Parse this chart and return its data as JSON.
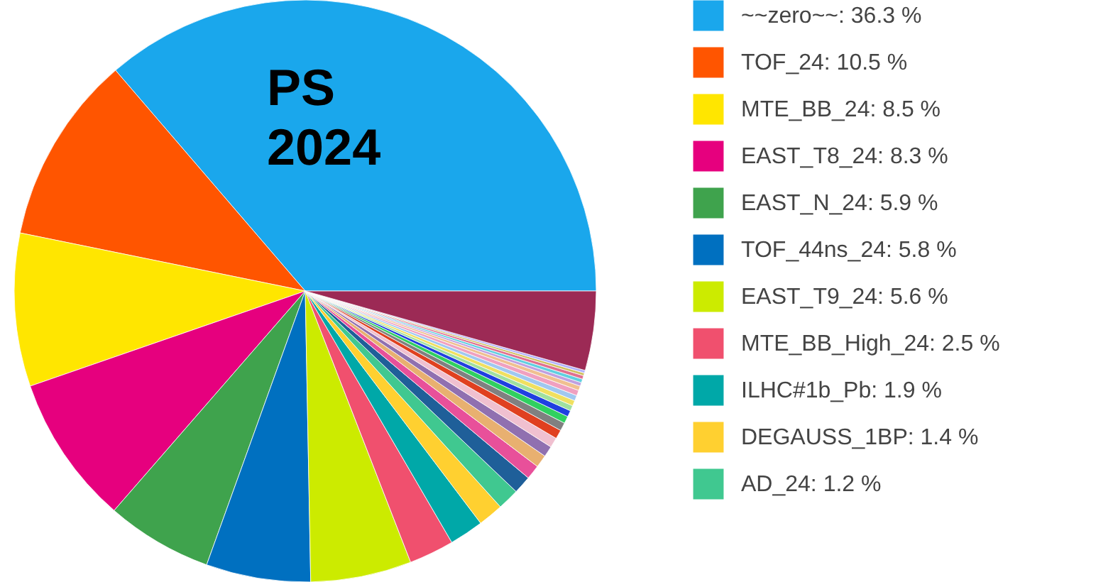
{
  "chart_data": {
    "type": "pie",
    "title": "PS 2024",
    "categories": [
      "~~zero~~",
      "TOF_24",
      "MTE_BB_24",
      "EAST_T8_24",
      "EAST_N_24",
      "TOF_44ns_24",
      "EAST_T9_24",
      "MTE_BB_High_24",
      "ILHC#1b_Pb",
      "DEGAUSS_1BP",
      "AD_24",
      null,
      null,
      null,
      null,
      null,
      null,
      null,
      null,
      null,
      null,
      null,
      null,
      null,
      null,
      null,
      null,
      null,
      null,
      null,
      null
    ],
    "values": [
      36.3,
      10.5,
      8.5,
      8.3,
      5.9,
      5.8,
      5.6,
      2.5,
      1.9,
      1.4,
      1.2,
      1.0,
      0.8,
      0.7,
      0.6,
      0.55,
      0.5,
      0.45,
      0.4,
      0.35,
      0.3,
      0.3,
      0.3,
      0.3,
      0.25,
      0.2,
      0.2,
      0.2,
      0.15,
      0.15,
      4.4
    ],
    "value_labels": [
      "36.3 %",
      "10.5 %",
      "8.5 %",
      "8.3 %",
      "5.9 %",
      "5.8 %",
      "5.6 %",
      "2.5 %",
      "1.9 %",
      "1.4 %",
      "1.2 %",
      null,
      null,
      null,
      null,
      null,
      null,
      null,
      null,
      null,
      null,
      null,
      null,
      null,
      null,
      null,
      null,
      null,
      null,
      null,
      null
    ],
    "colors": [
      "#1aa7ec",
      "#ff5500",
      "#ffe600",
      "#e6007e",
      "#3fa34d",
      "#0070c0",
      "#cceb00",
      "#f0506e",
      "#00a8a8",
      "#ffd030",
      "#40c890",
      "#1f5f99",
      "#e8509a",
      "#e8b070",
      "#9070b0",
      "#f0c0d0",
      "#e04020",
      "#808080",
      "#30d060",
      "#2040e0",
      "#a0e0a0",
      "#f0e060",
      "#a0c8f0",
      "#f0a0c0",
      "#f0c090",
      "#c0a0e0",
      "#60d0e0",
      "#e07090",
      "#d0c060",
      "#b0b0ff",
      "#9c2a55"
    ],
    "legend": "right"
  }
}
